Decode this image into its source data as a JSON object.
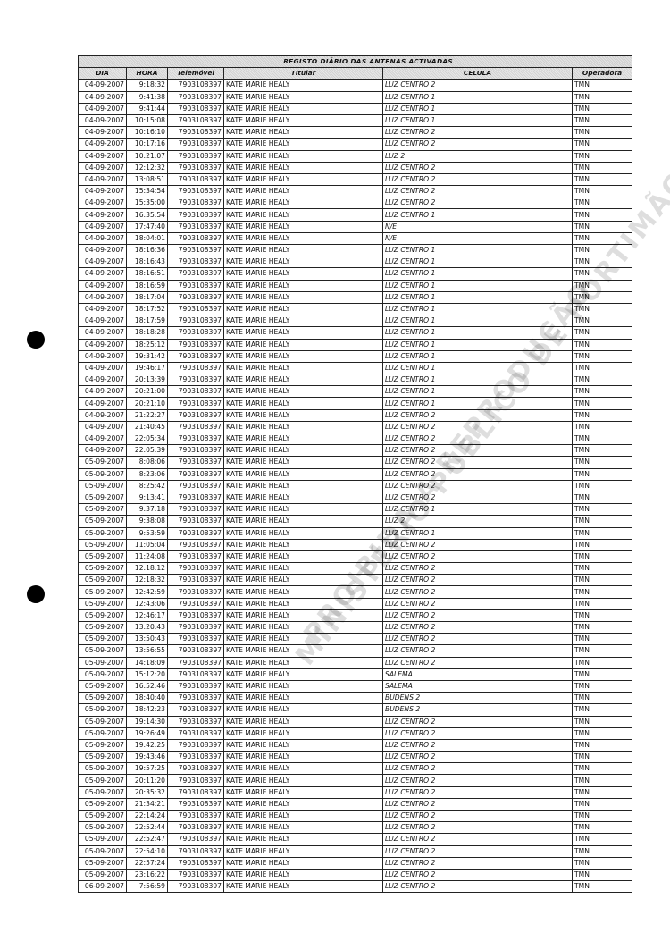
{
  "document": {
    "title": "REGISTO DIÁRIO DAS ANTENAS ACTIVADAS",
    "columns": [
      "DIA",
      "HORA",
      "Telemóvel",
      "Titular",
      "CELULA",
      "Operadora"
    ],
    "watermark": [
      "MINISTÉRIO PÚBLICO DE PORTIMÃO",
      "PROIBIDA A REPRODUÇÃO"
    ],
    "rows": [
      [
        "04-09-2007",
        "9:18:32",
        "7903108397",
        "KATE MARIE HEALY",
        "LUZ CENTRO 2",
        "TMN"
      ],
      [
        "04-09-2007",
        "9:41:38",
        "7903108397",
        "KATE MARIE HEALY",
        "LUZ CENTRO 1",
        "TMN"
      ],
      [
        "04-09-2007",
        "9:41:44",
        "7903108397",
        "KATE MARIE HEALY",
        "LUZ CENTRO 1",
        "TMN"
      ],
      [
        "04-09-2007",
        "10:15:08",
        "7903108397",
        "KATE MARIE HEALY",
        "LUZ CENTRO 1",
        "TMN"
      ],
      [
        "04-09-2007",
        "10:16:10",
        "7903108397",
        "KATE MARIE HEALY",
        "LUZ CENTRO 2",
        "TMN"
      ],
      [
        "04-09-2007",
        "10:17:16",
        "7903108397",
        "KATE MARIE HEALY",
        "LUZ CENTRO 2",
        "TMN"
      ],
      [
        "04-09-2007",
        "10:21:07",
        "7903108397",
        "KATE MARIE HEALY",
        "LUZ 2",
        "TMN"
      ],
      [
        "04-09-2007",
        "12:12:32",
        "7903108397",
        "KATE MARIE HEALY",
        "LUZ CENTRO 2",
        "TMN"
      ],
      [
        "04-09-2007",
        "13:08:51",
        "7903108397",
        "KATE MARIE HEALY",
        "LUZ CENTRO 2",
        "TMN"
      ],
      [
        "04-09-2007",
        "15:34:54",
        "7903108397",
        "KATE MARIE HEALY",
        "LUZ CENTRO 2",
        "TMN"
      ],
      [
        "04-09-2007",
        "15:35:00",
        "7903108397",
        "KATE MARIE HEALY",
        "LUZ CENTRO 2",
        "TMN"
      ],
      [
        "04-09-2007",
        "16:35:54",
        "7903108397",
        "KATE MARIE HEALY",
        "LUZ CENTRO 1",
        "TMN"
      ],
      [
        "04-09-2007",
        "17:47:40",
        "7903108397",
        "KATE MARIE HEALY",
        "N/E",
        "TMN"
      ],
      [
        "04-09-2007",
        "18:04:01",
        "7903108397",
        "KATE MARIE HEALY",
        "N/E",
        "TMN"
      ],
      [
        "04-09-2007",
        "18:16:36",
        "7903108397",
        "KATE MARIE HEALY",
        "LUZ CENTRO 1",
        "TMN"
      ],
      [
        "04-09-2007",
        "18:16:43",
        "7903108397",
        "KATE MARIE HEALY",
        "LUZ CENTRO 1",
        "TMN"
      ],
      [
        "04-09-2007",
        "18:16:51",
        "7903108397",
        "KATE MARIE HEALY",
        "LUZ CENTRO 1",
        "TMN"
      ],
      [
        "04-09-2007",
        "18:16:59",
        "7903108397",
        "KATE MARIE HEALY",
        "LUZ CENTRO 1",
        "TMN"
      ],
      [
        "04-09-2007",
        "18:17:04",
        "7903108397",
        "KATE MARIE HEALY",
        "LUZ CENTRO 1",
        "TMN"
      ],
      [
        "04-09-2007",
        "18:17:52",
        "7903108397",
        "KATE MARIE HEALY",
        "LUZ CENTRO 1",
        "TMN"
      ],
      [
        "04-09-2007",
        "18:17:59",
        "7903108397",
        "KATE MARIE HEALY",
        "LUZ CENTRO 1",
        "TMN"
      ],
      [
        "04-09-2007",
        "18:18:28",
        "7903108397",
        "KATE MARIE HEALY",
        "LUZ CENTRO 1",
        "TMN"
      ],
      [
        "04-09-2007",
        "18:25:12",
        "7903108397",
        "KATE MARIE HEALY",
        "LUZ CENTRO 1",
        "TMN"
      ],
      [
        "04-09-2007",
        "19:31:42",
        "7903108397",
        "KATE MARIE HEALY",
        "LUZ CENTRO 1",
        "TMN"
      ],
      [
        "04-09-2007",
        "19:46:17",
        "7903108397",
        "KATE MARIE HEALY",
        "LUZ CENTRO 1",
        "TMN"
      ],
      [
        "04-09-2007",
        "20:13:39",
        "7903108397",
        "KATE MARIE HEALY",
        "LUZ CENTRO 1",
        "TMN"
      ],
      [
        "04-09-2007",
        "20:21:00",
        "7903108397",
        "KATE MARIE HEALY",
        "LUZ CENTRO 1",
        "TMN"
      ],
      [
        "04-09-2007",
        "20:21:10",
        "7903108397",
        "KATE MARIE HEALY",
        "LUZ CENTRO 1",
        "TMN"
      ],
      [
        "04-09-2007",
        "21:22:27",
        "7903108397",
        "KATE MARIE HEALY",
        "LUZ CENTRO 2",
        "TMN"
      ],
      [
        "04-09-2007",
        "21:40:45",
        "7903108397",
        "KATE MARIE HEALY",
        "LUZ CENTRO 2",
        "TMN"
      ],
      [
        "04-09-2007",
        "22:05:34",
        "7903108397",
        "KATE MARIE HEALY",
        "LUZ CENTRO 2",
        "TMN"
      ],
      [
        "04-09-2007",
        "22:05:39",
        "7903108397",
        "KATE MARIE HEALY",
        "LUZ CENTRO 2",
        "TMN"
      ],
      [
        "05-09-2007",
        "8:08:06",
        "7903108397",
        "KATE MARIE HEALY",
        "LUZ CENTRO 2",
        "TMN"
      ],
      [
        "05-09-2007",
        "8:23:06",
        "7903108397",
        "KATE MARIE HEALY",
        "LUZ CENTRO 2",
        "TMN"
      ],
      [
        "05-09-2007",
        "8:25:42",
        "7903108397",
        "KATE MARIE HEALY",
        "LUZ CENTRO 2",
        "TMN"
      ],
      [
        "05-09-2007",
        "9:13:41",
        "7903108397",
        "KATE MARIE HEALY",
        "LUZ CENTRO 2",
        "TMN"
      ],
      [
        "05-09-2007",
        "9:37:18",
        "7903108397",
        "KATE MARIE HEALY",
        "LUZ CENTRO 1",
        "TMN"
      ],
      [
        "05-09-2007",
        "9:38:08",
        "7903108397",
        "KATE MARIE HEALY",
        "LUZ 2",
        "TMN"
      ],
      [
        "05-09-2007",
        "9:53:59",
        "7903108397",
        "KATE MARIE HEALY",
        "LUZ CENTRO 1",
        "TMN"
      ],
      [
        "05-09-2007",
        "11:05:04",
        "7903108397",
        "KATE MARIE HEALY",
        "LUZ CENTRO 2",
        "TMN"
      ],
      [
        "05-09-2007",
        "11:24:08",
        "7903108397",
        "KATE MARIE HEALY",
        "LUZ CENTRO 2",
        "TMN"
      ],
      [
        "05-09-2007",
        "12:18:12",
        "7903108397",
        "KATE MARIE HEALY",
        "LUZ CENTRO 2",
        "TMN"
      ],
      [
        "05-09-2007",
        "12:18:32",
        "7903108397",
        "KATE MARIE HEALY",
        "LUZ CENTRO 2",
        "TMN"
      ],
      [
        "05-09-2007",
        "12:42:59",
        "7903108397",
        "KATE MARIE HEALY",
        "LUZ CENTRO 2",
        "TMN"
      ],
      [
        "05-09-2007",
        "12:43:06",
        "7903108397",
        "KATE MARIE HEALY",
        "LUZ CENTRO 2",
        "TMN"
      ],
      [
        "05-09-2007",
        "12:46:17",
        "7903108397",
        "KATE MARIE HEALY",
        "LUZ CENTRO 2",
        "TMN"
      ],
      [
        "05-09-2007",
        "13:20:43",
        "7903108397",
        "KATE MARIE HEALY",
        "LUZ CENTRO 2",
        "TMN"
      ],
      [
        "05-09-2007",
        "13:50:43",
        "7903108397",
        "KATE MARIE HEALY",
        "LUZ CENTRO 2",
        "TMN"
      ],
      [
        "05-09-2007",
        "13:56:55",
        "7903108397",
        "KATE MARIE HEALY",
        "LUZ CENTRO 2",
        "TMN"
      ],
      [
        "05-09-2007",
        "14:18:09",
        "7903108397",
        "KATE MARIE HEALY",
        "LUZ CENTRO 2",
        "TMN"
      ],
      [
        "05-09-2007",
        "15:12:20",
        "7903108397",
        "KATE MARIE HEALY",
        "SALEMA",
        "TMN"
      ],
      [
        "05-09-2007",
        "16:52:46",
        "7903108397",
        "KATE MARIE HEALY",
        "SALEMA",
        "TMN"
      ],
      [
        "05-09-2007",
        "18:40:40",
        "7903108397",
        "KATE MARIE HEALY",
        "BUDENS 2",
        "TMN"
      ],
      [
        "05-09-2007",
        "18:42:23",
        "7903108397",
        "KATE MARIE HEALY",
        "BUDENS 2",
        "TMN"
      ],
      [
        "05-09-2007",
        "19:14:30",
        "7903108397",
        "KATE MARIE HEALY",
        "LUZ CENTRO 2",
        "TMN"
      ],
      [
        "05-09-2007",
        "19:26:49",
        "7903108397",
        "KATE MARIE HEALY",
        "LUZ CENTRO 2",
        "TMN"
      ],
      [
        "05-09-2007",
        "19:42:25",
        "7903108397",
        "KATE MARIE HEALY",
        "LUZ CENTRO 2",
        "TMN"
      ],
      [
        "05-09-2007",
        "19:43:46",
        "7903108397",
        "KATE MARIE HEALY",
        "LUZ CENTRO 2",
        "TMN"
      ],
      [
        "05-09-2007",
        "19:57:25",
        "7903108397",
        "KATE MARIE HEALY",
        "LUZ CENTRO 2",
        "TMN"
      ],
      [
        "05-09-2007",
        "20:11:20",
        "7903108397",
        "KATE MARIE HEALY",
        "LUZ CENTRO 2",
        "TMN"
      ],
      [
        "05-09-2007",
        "20:35:32",
        "7903108397",
        "KATE MARIE HEALY",
        "LUZ CENTRO 2",
        "TMN"
      ],
      [
        "05-09-2007",
        "21:34:21",
        "7903108397",
        "KATE MARIE HEALY",
        "LUZ CENTRO 2",
        "TMN"
      ],
      [
        "05-09-2007",
        "22:14:24",
        "7903108397",
        "KATE MARIE HEALY",
        "LUZ CENTRO 2",
        "TMN"
      ],
      [
        "05-09-2007",
        "22:52:44",
        "7903108397",
        "KATE MARIE HEALY",
        "LUZ CENTRO 2",
        "TMN"
      ],
      [
        "05-09-2007",
        "22:52:47",
        "7903108397",
        "KATE MARIE HEALY",
        "LUZ CENTRO 2",
        "TMN"
      ],
      [
        "05-09-2007",
        "22:54:10",
        "7903108397",
        "KATE MARIE HEALY",
        "LUZ CENTRO 2",
        "TMN"
      ],
      [
        "05-09-2007",
        "22:57:24",
        "7903108397",
        "KATE MARIE HEALY",
        "LUZ CENTRO 2",
        "TMN"
      ],
      [
        "05-09-2007",
        "23:16:22",
        "7903108397",
        "KATE MARIE HEALY",
        "LUZ CENTRO 2",
        "TMN"
      ],
      [
        "06-09-2007",
        "7:56:59",
        "7903108397",
        "KATE MARIE HEALY",
        "LUZ CENTRO 2",
        "TMN"
      ]
    ]
  }
}
